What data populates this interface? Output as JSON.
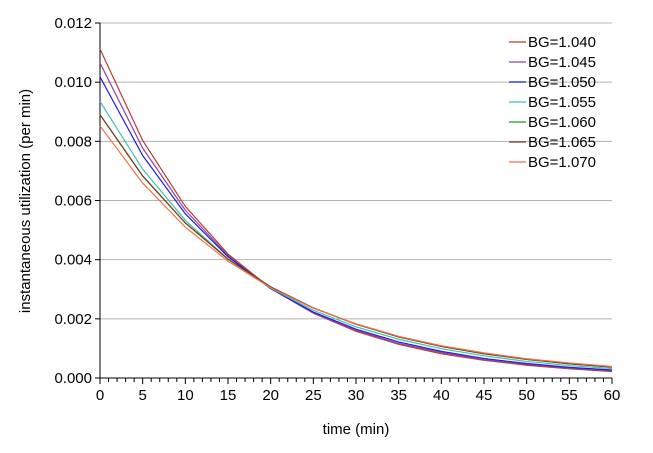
{
  "chart_data": {
    "type": "line",
    "xlabel": "time (min)",
    "ylabel": "instantaneous utilization (per min)",
    "xlim": [
      0,
      60
    ],
    "ylim": [
      0,
      0.012
    ],
    "x_ticks": [
      "0",
      "5",
      "10",
      "15",
      "20",
      "25",
      "30",
      "35",
      "40",
      "45",
      "50",
      "55",
      "60"
    ],
    "y_ticks": [
      "0.000",
      "0.002",
      "0.004",
      "0.006",
      "0.008",
      "0.010",
      "0.012"
    ],
    "grid": true,
    "legend_position": "top-right",
    "x": [
      0,
      5,
      10,
      15,
      20,
      25,
      30,
      35,
      40,
      45,
      50,
      55,
      60
    ],
    "series": [
      {
        "name": "BG=1.040",
        "color": "#c0392b",
        "values": [
          0.01112,
          0.00803,
          0.0058,
          0.00419,
          0.00303,
          0.00219,
          0.00158,
          0.00114,
          0.00082,
          0.0006,
          0.00043,
          0.00031,
          0.00022
        ]
      },
      {
        "name": "BG=1.045",
        "color": "#8e44ad",
        "values": [
          0.01065,
          0.00777,
          0.00567,
          0.00414,
          0.00302,
          0.0022,
          0.00161,
          0.00117,
          0.00086,
          0.00062,
          0.00046,
          0.00033,
          0.00024
        ]
      },
      {
        "name": "BG=1.050",
        "color": "#1f1fd6",
        "values": [
          0.01018,
          0.00752,
          0.00555,
          0.0041,
          0.00302,
          0.00223,
          0.00165,
          0.00122,
          0.0009,
          0.00066,
          0.00049,
          0.00036,
          0.00027
        ]
      },
      {
        "name": "BG=1.055",
        "color": "#3fc1b0",
        "values": [
          0.00935,
          0.00706,
          0.00533,
          0.00402,
          0.00304,
          0.00229,
          0.00173,
          0.00131,
          0.00099,
          0.00075,
          0.00056,
          0.00042,
          0.00032
        ]
      },
      {
        "name": "BG=1.060",
        "color": "#1f9a2e",
        "values": [
          0.0089,
          0.00683,
          0.00524,
          0.00402,
          0.00308,
          0.00237,
          0.00182,
          0.00139,
          0.00107,
          0.00082,
          0.00063,
          0.00048,
          0.00037
        ]
      },
      {
        "name": "BG=1.065",
        "color": "#7a3b1d",
        "values": [
          0.0089,
          0.00683,
          0.00524,
          0.00402,
          0.00308,
          0.00237,
          0.00182,
          0.00139,
          0.00107,
          0.00082,
          0.00063,
          0.00048,
          0.00037
        ]
      },
      {
        "name": "BG=1.070",
        "color": "#f0724a",
        "values": [
          0.00852,
          0.00659,
          0.0051,
          0.00395,
          0.00305,
          0.00236,
          0.00183,
          0.00141,
          0.00109,
          0.00085,
          0.00065,
          0.00051,
          0.00039
        ]
      }
    ]
  }
}
